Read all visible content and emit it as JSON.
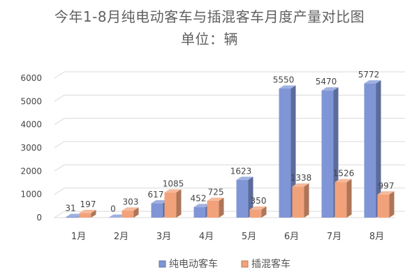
{
  "chart_data": {
    "type": "bar",
    "title": "今年1-8月纯电动客车与插混客车月度产量对比图",
    "subtitle": "单位：辆",
    "categories": [
      "1月",
      "2月",
      "3月",
      "4月",
      "5月",
      "6月",
      "7月",
      "8月"
    ],
    "series": [
      {
        "name": "纯电动客车",
        "values": [
          31,
          0,
          617,
          452,
          1623,
          5550,
          5470,
          5772
        ],
        "labels": [
          "31",
          "0",
          "617",
          "452",
          "1623",
          "5550",
          "5470",
          "5772"
        ],
        "color": "#7f95d6"
      },
      {
        "name": "插混客车",
        "values": [
          197,
          303,
          1085,
          725,
          350,
          1338,
          1526,
          997
        ],
        "labels": [
          "197",
          "303",
          "1085",
          "725",
          "350",
          "1338",
          "1526",
          "997"
        ],
        "color": "#f2a27a"
      }
    ],
    "ylim": [
      0,
      6000
    ],
    "yticks": [
      "0",
      "1000",
      "2000",
      "3000",
      "4000",
      "5000",
      "6000"
    ],
    "grid": true,
    "legend": "bottom",
    "xlabel": "",
    "ylabel": ""
  }
}
